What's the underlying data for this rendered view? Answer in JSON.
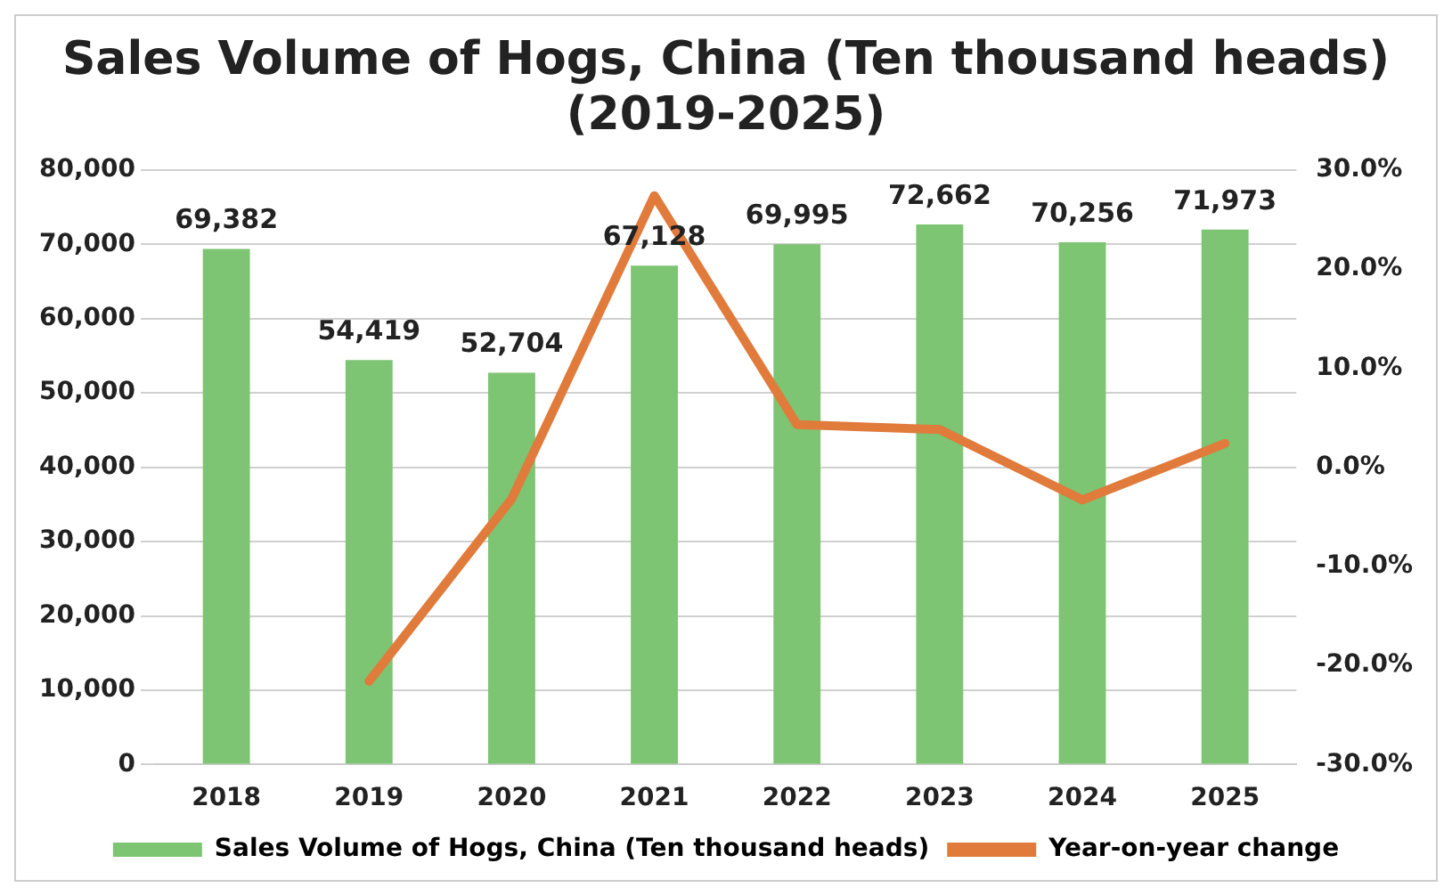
{
  "chart_data": {
    "type": "bar",
    "title": "Sales Volume of Hogs, China (Ten thousand heads) (2019-2025)",
    "categories": [
      "2018",
      "2019",
      "2020",
      "2021",
      "2022",
      "2023",
      "2024",
      "2025"
    ],
    "series": [
      {
        "name": "Sales Volume of Hogs, China (Ten thousand heads)",
        "color": "#7dc473",
        "values": [
          69382,
          54419,
          52704,
          67128,
          69995,
          72662,
          70256,
          71973
        ],
        "value_labels": [
          "69,382",
          "54,419",
          "52,704",
          "67,128",
          "69,995",
          "72,662",
          "70,256",
          "71,973"
        ]
      },
      {
        "name": "Year-on-year change",
        "type": "line",
        "axis": "y2",
        "color": "#e07b3c",
        "marker": "none",
        "values": [
          null,
          -21.6,
          -3.2,
          27.4,
          4.3,
          3.8,
          -3.3,
          2.4
        ]
      }
    ],
    "ylim": [
      0,
      80000
    ],
    "yticks": [
      {
        "value": 0,
        "label": "0"
      },
      {
        "value": 10000,
        "label": "10,000"
      },
      {
        "value": 20000,
        "label": "20,000"
      },
      {
        "value": 30000,
        "label": "30,000"
      },
      {
        "value": 40000,
        "label": "40,000"
      },
      {
        "value": 50000,
        "label": "50,000"
      },
      {
        "value": 60000,
        "label": "60,000"
      },
      {
        "value": 70000,
        "label": "70,000"
      },
      {
        "value": 80000,
        "label": "80,000"
      }
    ],
    "y2lim": [
      -30,
      30
    ],
    "y2ticks": [
      {
        "value": -30,
        "label": "-30.0%"
      },
      {
        "value": -20,
        "label": "-20.0%"
      },
      {
        "value": -10,
        "label": "-10.0%"
      },
      {
        "value": 0,
        "label": "0.0%"
      },
      {
        "value": 10,
        "label": "10.0%"
      },
      {
        "value": 20,
        "label": "20.0%"
      },
      {
        "value": 30,
        "label": "30.0%"
      }
    ],
    "grid": "y",
    "legend": "bottom"
  }
}
